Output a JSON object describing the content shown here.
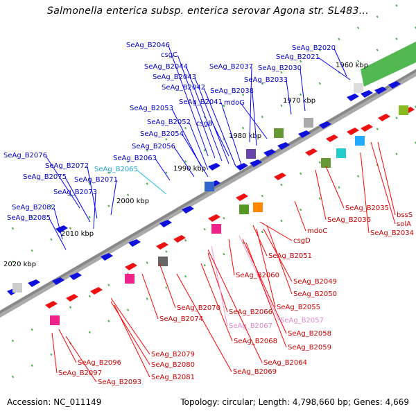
{
  "title": "Salmonella enterica subsp. enterica serovar Agona str. SL483...",
  "footer": {
    "accession": "Accession: NC_011149",
    "summary": "Topology: circular; Length: 4,798,660 bp; Genes: 4,669"
  },
  "colors": {
    "forward": "#1010dd",
    "reverse": "#ee1111",
    "rna": "#33aadd",
    "pseudo": "#ee88cc",
    "backbone": "#888888",
    "tick": "#228822"
  },
  "ticks": [
    {
      "label": "1960 kbp"
    },
    {
      "label": "1970 kbp"
    },
    {
      "label": "1980 kbp"
    },
    {
      "label": "1990 kbp"
    },
    {
      "label": "2000 kbp"
    },
    {
      "label": "2010 kbp"
    },
    {
      "label": "2020 kbp"
    }
  ],
  "genes_upper": [
    {
      "name": "SeAg_B2046",
      "type": "forward"
    },
    {
      "name": "csgC",
      "type": "forward"
    },
    {
      "name": "SeAg_B2044",
      "type": "forward"
    },
    {
      "name": "SeAg_B2043",
      "type": "forward"
    },
    {
      "name": "SeAg_B2042",
      "type": "forward"
    },
    {
      "name": "SeAg_B2041",
      "type": "forward"
    },
    {
      "name": "SeAg_B2037",
      "type": "forward"
    },
    {
      "name": "SeAg_B2038",
      "type": "forward"
    },
    {
      "name": "mdoG",
      "type": "forward"
    },
    {
      "name": "SeAg_B2020",
      "type": "forward"
    },
    {
      "name": "SeAg_B2021",
      "type": "forward"
    },
    {
      "name": "SeAg_B2030",
      "type": "forward"
    },
    {
      "name": "SeAg_B2033",
      "type": "forward"
    },
    {
      "name": "SeAg_B2053",
      "type": "forward"
    },
    {
      "name": "SeAg_B2052",
      "type": "forward"
    },
    {
      "name": "csgB",
      "type": "forward"
    },
    {
      "name": "SeAg_B2054",
      "type": "forward"
    },
    {
      "name": "SeAg_B2056",
      "type": "forward"
    },
    {
      "name": "SeAg_B2063",
      "type": "forward"
    },
    {
      "name": "SeAg_B2076",
      "type": "forward"
    },
    {
      "name": "SeAg_B2072",
      "type": "forward"
    },
    {
      "name": "SeAg_B2065",
      "type": "rna"
    },
    {
      "name": "SeAg_B2075",
      "type": "forward"
    },
    {
      "name": "SeAg_B2071",
      "type": "forward"
    },
    {
      "name": "SeAg_B2073",
      "type": "forward"
    },
    {
      "name": "SeAg_B2082",
      "type": "forward"
    },
    {
      "name": "SeAg_B2085",
      "type": "forward"
    }
  ],
  "genes_lower": [
    {
      "name": "SeAg_B2035",
      "type": "reverse"
    },
    {
      "name": "bssS",
      "type": "reverse"
    },
    {
      "name": "SeAg_B2036",
      "type": "reverse"
    },
    {
      "name": "solA",
      "type": "reverse"
    },
    {
      "name": "SeAg_B2034",
      "type": "reverse"
    },
    {
      "name": "mdoC",
      "type": "reverse"
    },
    {
      "name": "csgD",
      "type": "reverse"
    },
    {
      "name": "SeAg_B2051",
      "type": "reverse"
    },
    {
      "name": "SeAg_B2060",
      "type": "reverse"
    },
    {
      "name": "SeAg_B2049",
      "type": "reverse"
    },
    {
      "name": "SeAg_B2050",
      "type": "reverse"
    },
    {
      "name": "SeAg_B2055",
      "type": "reverse"
    },
    {
      "name": "SeAg_B2070",
      "type": "reverse"
    },
    {
      "name": "SeAg_B2066",
      "type": "reverse"
    },
    {
      "name": "SeAg_B2057",
      "type": "pseudo"
    },
    {
      "name": "SeAg_B2074",
      "type": "reverse"
    },
    {
      "name": "SeAg_B2067",
      "type": "pseudo"
    },
    {
      "name": "SeAg_B2058",
      "type": "reverse"
    },
    {
      "name": "SeAg_B2068",
      "type": "reverse"
    },
    {
      "name": "SeAg_B2059",
      "type": "reverse"
    },
    {
      "name": "SeAg_B2079",
      "type": "reverse"
    },
    {
      "name": "SeAg_B2064",
      "type": "reverse"
    },
    {
      "name": "SeAg_B2096",
      "type": "reverse"
    },
    {
      "name": "SeAg_B2080",
      "type": "reverse"
    },
    {
      "name": "SeAg_B2069",
      "type": "reverse"
    },
    {
      "name": "SeAg_B2097",
      "type": "reverse"
    },
    {
      "name": "SeAg_B2081",
      "type": "reverse"
    },
    {
      "name": "SeAg_B2093",
      "type": "reverse"
    }
  ]
}
